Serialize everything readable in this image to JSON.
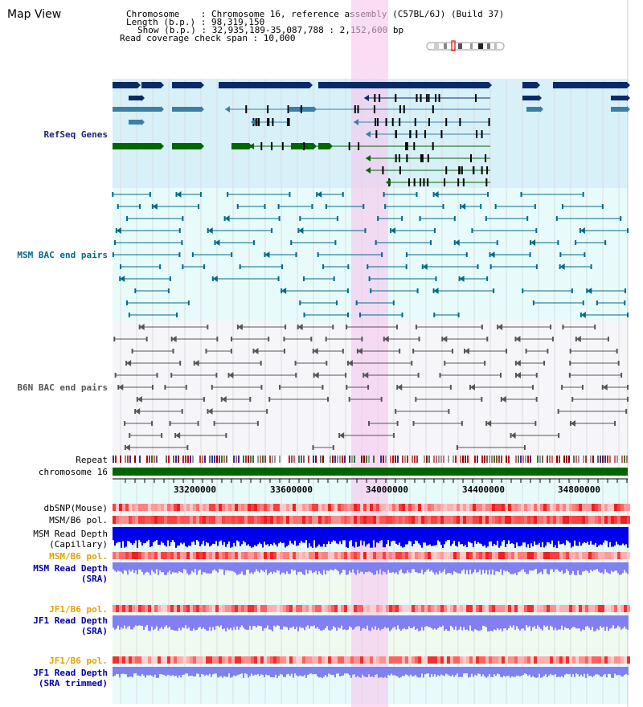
{
  "title": "Map View",
  "header": {
    "chromosome_line": "Chromosome    : Chromosome 16, reference assembly (C57BL/6J) (Build 37)",
    "length_line": "Length (b.p.) : 98,319,150",
    "show_line": "Show (b.p.) : 32,935,189-35,087,788 : 2,152,600 bp",
    "coverage_line": "Read coverage check span : 10,000"
  },
  "tracks": {
    "refseq": "RefSeq Genes",
    "msm_bac": "MSM BAC end pairs",
    "b6n_bac": "B6N BAC end pairs",
    "repeat": "Repeat",
    "chromosome": "chromosome 16",
    "dbsnp": "dbSNP(Mouse)",
    "msm_b6_pol_1": "MSM/B6 pol.",
    "msm_read_depth_cap_1": "MSM Read Depth",
    "msm_read_depth_cap_2": "(Capillary)",
    "msm_b6_pol_2": "MSM/B6 pol.",
    "msm_read_depth_sra_1": "MSM Read Depth",
    "msm_read_depth_sra_2": "(SRA)",
    "jf1_b6_pol_1": "JF1/B6 pol.",
    "jf1_read_depth_sra_1": "JF1 Read Depth",
    "jf1_read_depth_sra_2": "(SRA)",
    "jf1_b6_pol_2": "JF1/B6 pol.",
    "jf1_read_depth_trim_1": "JF1 Read Depth",
    "jf1_read_depth_trim_2": "(SRA trimmed)"
  },
  "axis": {
    "ticks": [
      "33200000",
      "33600000",
      "34000000",
      "34400000",
      "34800000"
    ]
  },
  "colors": {
    "navy": "#0a2a66",
    "teal": "#3a7fa8",
    "green": "#006600",
    "msm_line": "#006a8a",
    "b6n_line": "#555555",
    "highlight": "#f7c6ef",
    "label_orange": "#e8a000",
    "label_blue": "#0000aa",
    "label_teal": "#006a8a"
  }
}
